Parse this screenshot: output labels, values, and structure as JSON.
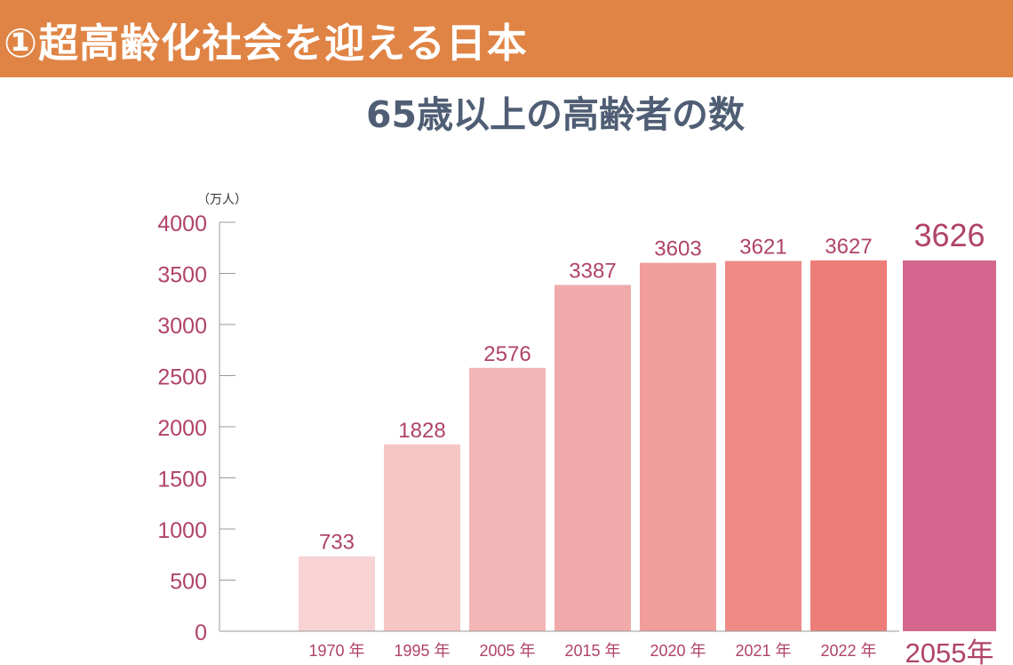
{
  "header": {
    "title": "①超高齢化社会を迎える日本"
  },
  "chart_data": {
    "type": "bar",
    "title": "65歳以上の高齢者の数",
    "unit": "（万人）",
    "categories": [
      "1970 年",
      "1995 年",
      "2005 年",
      "2015 年",
      "2020 年",
      "2021 年",
      "2022 年",
      "2055年"
    ],
    "values": [
      733,
      1828,
      2576,
      3387,
      3603,
      3621,
      3627,
      3626
    ],
    "value_labels": [
      "733",
      "1828",
      "2576",
      "3387",
      "3603",
      "3621",
      "3627",
      "3626"
    ],
    "y_ticks": [
      "0",
      "500",
      "1000",
      "1500",
      "2000",
      "2500",
      "3000",
      "3500",
      "4000"
    ],
    "ylim": [
      0,
      4000
    ],
    "grid": false,
    "colors": [
      "#f7d3d3",
      "#f6c6c5",
      "#f3b6b6",
      "#f1aaaa",
      "#f09d9b",
      "#ee8b87",
      "#ed7d78",
      "#d5678e"
    ],
    "highlight_index": 7,
    "label_color": "#b04368",
    "axis_color": "#999999"
  }
}
